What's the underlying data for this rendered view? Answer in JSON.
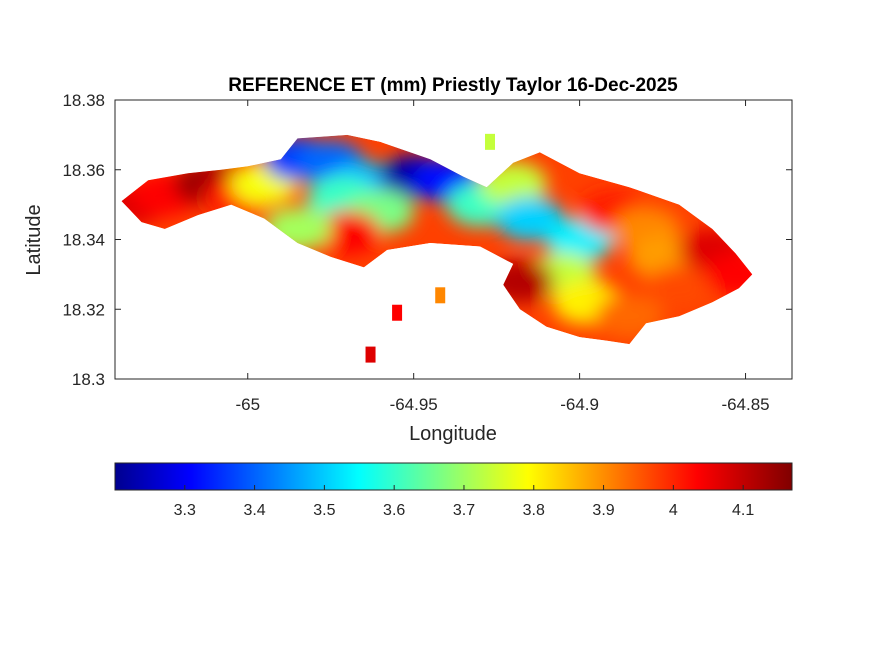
{
  "chart_data": {
    "type": "heatmap",
    "title": "REFERENCE ET (mm) Priestly Taylor 16-Dec-2025",
    "xlabel": "Longitude",
    "ylabel": "Latitude",
    "xlim": [
      -65.04,
      -64.836
    ],
    "ylim": [
      18.3,
      18.38
    ],
    "xticks": [
      -65,
      -64.95,
      -64.9,
      -64.85
    ],
    "xtick_labels": [
      "-65",
      "-64.95",
      "-64.9",
      "-64.85"
    ],
    "yticks": [
      18.3,
      18.32,
      18.34,
      18.36,
      18.38
    ],
    "ytick_labels": [
      "18.3",
      "18.32",
      "18.34",
      "18.36",
      "18.38"
    ],
    "grid": false,
    "colormap": "jet",
    "colorbar": {
      "orientation": "horizontal",
      "location": "below",
      "range": [
        3.2,
        4.17
      ],
      "ticks": [
        3.3,
        3.4,
        3.5,
        3.6,
        3.7,
        3.8,
        3.9,
        4,
        4.1
      ],
      "tick_labels": [
        "3.3",
        "3.4",
        "3.5",
        "3.6",
        "3.7",
        "3.8",
        "3.9",
        "4",
        "4.1"
      ]
    },
    "island_outline": [
      [
        -65.038,
        18.351
      ],
      [
        -65.03,
        18.357
      ],
      [
        -65.018,
        18.359
      ],
      [
        -65.008,
        18.36
      ],
      [
        -65.0,
        18.361
      ],
      [
        -64.99,
        18.363
      ],
      [
        -64.985,
        18.369
      ],
      [
        -64.97,
        18.37
      ],
      [
        -64.96,
        18.368
      ],
      [
        -64.945,
        18.363
      ],
      [
        -64.935,
        18.358
      ],
      [
        -64.928,
        18.355
      ],
      [
        -64.92,
        18.362
      ],
      [
        -64.912,
        18.365
      ],
      [
        -64.9,
        18.359
      ],
      [
        -64.885,
        18.355
      ],
      [
        -64.87,
        18.35
      ],
      [
        -64.86,
        18.343
      ],
      [
        -64.853,
        18.336
      ],
      [
        -64.848,
        18.33
      ],
      [
        -64.852,
        18.326
      ],
      [
        -64.86,
        18.322
      ],
      [
        -64.87,
        18.318
      ],
      [
        -64.88,
        18.316
      ],
      [
        -64.885,
        18.31
      ],
      [
        -64.892,
        18.311
      ],
      [
        -64.9,
        18.312
      ],
      [
        -64.91,
        18.315
      ],
      [
        -64.918,
        18.32
      ],
      [
        -64.923,
        18.327
      ],
      [
        -64.92,
        18.333
      ],
      [
        -64.93,
        18.338
      ],
      [
        -64.945,
        18.339
      ],
      [
        -64.958,
        18.337
      ],
      [
        -64.965,
        18.332
      ],
      [
        -64.975,
        18.335
      ],
      [
        -64.985,
        18.339
      ],
      [
        -64.995,
        18.346
      ],
      [
        -65.005,
        18.35
      ],
      [
        -65.015,
        18.347
      ],
      [
        -65.025,
        18.343
      ],
      [
        -65.032,
        18.345
      ]
    ],
    "value_field": [
      {
        "lon": -65.035,
        "lat": 18.35,
        "value": 4.08
      },
      {
        "lon": -65.025,
        "lat": 18.353,
        "value": 4.05
      },
      {
        "lon": -65.012,
        "lat": 18.356,
        "value": 4.14
      },
      {
        "lon": -65.003,
        "lat": 18.352,
        "value": 4.02
      },
      {
        "lon": -64.995,
        "lat": 18.356,
        "value": 3.8
      },
      {
        "lon": -64.985,
        "lat": 18.363,
        "value": 3.38
      },
      {
        "lon": -64.975,
        "lat": 18.362,
        "value": 3.42
      },
      {
        "lon": -64.965,
        "lat": 18.356,
        "value": 3.5
      },
      {
        "lon": -64.972,
        "lat": 18.352,
        "value": 3.62
      },
      {
        "lon": -64.95,
        "lat": 18.358,
        "value": 3.24
      },
      {
        "lon": -64.94,
        "lat": 18.357,
        "value": 3.33
      },
      {
        "lon": -64.96,
        "lat": 18.348,
        "value": 3.68
      },
      {
        "lon": -64.97,
        "lat": 18.342,
        "value": 4.05
      },
      {
        "lon": -64.985,
        "lat": 18.343,
        "value": 3.72
      },
      {
        "lon": -64.93,
        "lat": 18.35,
        "value": 3.62
      },
      {
        "lon": -64.92,
        "lat": 18.356,
        "value": 3.75
      },
      {
        "lon": -64.915,
        "lat": 18.346,
        "value": 3.52
      },
      {
        "lon": -64.9,
        "lat": 18.34,
        "value": 3.55
      },
      {
        "lon": -64.905,
        "lat": 18.33,
        "value": 3.75
      },
      {
        "lon": -64.898,
        "lat": 18.322,
        "value": 3.82
      },
      {
        "lon": -64.918,
        "lat": 18.328,
        "value": 4.12
      },
      {
        "lon": -64.89,
        "lat": 18.348,
        "value": 4.02
      },
      {
        "lon": -64.88,
        "lat": 18.343,
        "value": 3.92
      },
      {
        "lon": -64.875,
        "lat": 18.335,
        "value": 3.9
      },
      {
        "lon": -64.87,
        "lat": 18.326,
        "value": 3.98
      },
      {
        "lon": -64.86,
        "lat": 18.337,
        "value": 4.08
      },
      {
        "lon": -64.852,
        "lat": 18.33,
        "value": 4.05
      },
      {
        "lon": -64.885,
        "lat": 18.318,
        "value": 3.95
      }
    ],
    "small_patches": [
      {
        "lon": -64.942,
        "lat": 18.324,
        "value": 3.92
      },
      {
        "lon": -64.955,
        "lat": 18.319,
        "value": 4.05
      },
      {
        "lon": -64.963,
        "lat": 18.307,
        "value": 4.08
      },
      {
        "lon": -64.927,
        "lat": 18.368,
        "value": 3.75
      }
    ]
  }
}
